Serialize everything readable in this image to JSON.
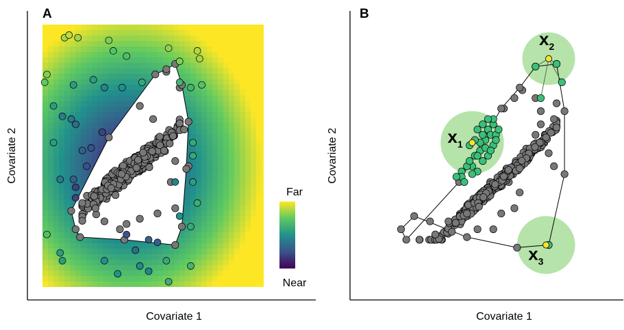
{
  "chart_data": [
    {
      "type": "scatter",
      "panel_label": "A",
      "xlabel": "Covariate 1",
      "ylabel": "Covariate 2",
      "xlim": [
        0,
        100
      ],
      "ylim": [
        0,
        100
      ],
      "grid": false,
      "background": "heatmap of distance to convex hull",
      "colorbar": {
        "top_label": "Far",
        "bottom_label": "Near",
        "colors": [
          "#fde725",
          "#5ec962",
          "#21918c",
          "#3b528b",
          "#440154"
        ]
      },
      "hull": [
        [
          56,
          83
        ],
        [
          60,
          85
        ],
        [
          63,
          77
        ],
        [
          66,
          63
        ],
        [
          65,
          45
        ],
        [
          63,
          23
        ],
        [
          60,
          16
        ],
        [
          37,
          18
        ],
        [
          17,
          19
        ],
        [
          15,
          22
        ],
        [
          13,
          29
        ],
        [
          30,
          57
        ],
        [
          51,
          81
        ]
      ],
      "series": [
        {
          "values": "outside points colored by distance",
          "points": [
            [
              10,
              95,
              0.86
            ],
            [
              12,
              96,
              0.9
            ],
            [
              16,
              95,
              0.85
            ],
            [
              30,
              94,
              0.8
            ],
            [
              32,
              90,
              0.72
            ],
            [
              38,
              88,
              0.7
            ],
            [
              57,
              91,
              0.82
            ],
            [
              62,
              86,
              0.8
            ],
            [
              70,
              90,
              0.88
            ],
            [
              71,
              87,
              0.86
            ],
            [
              2,
              81,
              0.8
            ],
            [
              1,
              78,
              0.75
            ],
            [
              14,
              77,
              0.55
            ],
            [
              23,
              79,
              0.55
            ],
            [
              28,
              76,
              0.45
            ],
            [
              36,
              76,
              0.5
            ],
            [
              45,
              78,
              0.6
            ],
            [
              62,
              78,
              0.65
            ],
            [
              67,
              76,
              0.65
            ],
            [
              72,
              77,
              0.72
            ],
            [
              5,
              69,
              0.55
            ],
            [
              9,
              65,
              0.42
            ],
            [
              13,
              64,
              0.4
            ],
            [
              15,
              62,
              0.35
            ],
            [
              27,
              59,
              0.2
            ],
            [
              22,
              53,
              0.25
            ],
            [
              18,
              52,
              0.3
            ],
            [
              5,
              55,
              0.55
            ],
            [
              68,
              50,
              0.6
            ],
            [
              68,
              55,
              0.6
            ],
            [
              68,
              40,
              0.55
            ],
            [
              70,
              32,
              0.62
            ],
            [
              8,
              41,
              0.4
            ],
            [
              14,
              41,
              0.3
            ],
            [
              20,
              46,
              0.25
            ],
            [
              15,
              38,
              0.2
            ],
            [
              15,
              34,
              0.2
            ],
            [
              60,
              40,
              0.45
            ],
            [
              62,
              27,
              0.5
            ],
            [
              67,
              23,
              0.6
            ],
            [
              38,
              20,
              0.25
            ],
            [
              48,
              18,
              0.32
            ],
            [
              52,
              17,
              0.3
            ],
            [
              42,
              14,
              0.35
            ],
            [
              8,
              13,
              0.55
            ],
            [
              9,
              10,
              0.55
            ],
            [
              28,
              10,
              0.5
            ],
            [
              44,
              8,
              0.48
            ],
            [
              48,
              6,
              0.45
            ],
            [
              56,
              10,
              0.6
            ],
            [
              67,
              8,
              0.65
            ],
            [
              34,
              5,
              0.5
            ],
            [
              2,
              20,
              0.7
            ],
            [
              57,
              2,
              0.62
            ]
          ]
        },
        {
          "values": "inside points (grey)",
          "count": 480,
          "center": [
            40,
            45
          ],
          "spread": [
            9,
            6
          ],
          "edge_points": [
            [
              56,
              82
            ],
            [
              62,
              76
            ],
            [
              64,
              60
            ],
            [
              66,
              46
            ],
            [
              58,
              40
            ],
            [
              60,
              30
            ],
            [
              52,
              28
            ],
            [
              44,
              26
            ],
            [
              24,
              30
            ],
            [
              28,
              25
            ],
            [
              33,
              35
            ],
            [
              50,
              64
            ],
            [
              44,
              69
            ],
            [
              55,
              52
            ],
            [
              60,
              48
            ],
            [
              35,
              22
            ],
            [
              38,
              24
            ]
          ]
        }
      ]
    },
    {
      "type": "scatter",
      "panel_label": "B",
      "xlabel": "Covariate 1",
      "ylabel": "Covariate 2",
      "xlim": [
        0,
        100
      ],
      "ylim": [
        0,
        100
      ],
      "grid": false,
      "hull": [
        [
          68,
          84
        ],
        [
          76,
          85
        ],
        [
          79,
          67
        ],
        [
          79,
          43
        ],
        [
          73,
          16
        ],
        [
          61,
          15
        ],
        [
          42,
          19
        ],
        [
          22,
          27
        ],
        [
          17,
          22
        ],
        [
          19,
          18
        ],
        [
          39,
          40
        ],
        [
          55,
          68
        ],
        [
          62,
          76
        ]
      ],
      "neighborhoods": [
        {
          "label": "x",
          "subscript": "1",
          "center": [
            44,
            55
          ],
          "radius": 12
        },
        {
          "label": "x",
          "subscript": "2",
          "center": [
            73,
            87
          ],
          "radius": 10
        },
        {
          "label": "x",
          "subscript": "3",
          "center": [
            72,
            16
          ],
          "radius": 11
        }
      ],
      "colors": {
        "neighborhood": "#b5e3a9",
        "highlight": "#3bbf7a",
        "point": "#787878",
        "query": "#f5e135"
      },
      "series": [
        {
          "values": "grey points",
          "count": 470,
          "center": [
            52,
            38
          ],
          "spread": [
            10,
            7
          ],
          "edge_points": [
            [
              56,
              68
            ],
            [
              60,
              72
            ],
            [
              63,
              75
            ],
            [
              68,
              72
            ],
            [
              70,
              67
            ],
            [
              75,
              64
            ],
            [
              72,
              57
            ],
            [
              73,
              51
            ],
            [
              75,
              46
            ],
            [
              68,
              58
            ],
            [
              70,
              62
            ],
            [
              62,
              36
            ],
            [
              60,
              30
            ],
            [
              55,
              28
            ],
            [
              42,
              28
            ],
            [
              35,
              25
            ],
            [
              30,
              20
            ],
            [
              28,
              25
            ],
            [
              52,
              22
            ],
            [
              46,
              22
            ]
          ]
        },
        {
          "values": "green highlighted neighbours",
          "points": [
            [
              43,
              54
            ],
            [
              46,
              60
            ],
            [
              48,
              62
            ],
            [
              50,
              60
            ],
            [
              51,
              58
            ],
            [
              52,
              62
            ],
            [
              49,
              56
            ],
            [
              47,
              52
            ],
            [
              45,
              50
            ],
            [
              50,
              50
            ],
            [
              52,
              54
            ],
            [
              53,
              58
            ],
            [
              48,
              48
            ],
            [
              44,
              46
            ],
            [
              42,
              46
            ],
            [
              46,
              44
            ],
            [
              40,
              44
            ],
            [
              40,
              42
            ],
            [
              38,
              42
            ],
            [
              41,
              40
            ],
            [
              44,
              43
            ],
            [
              47,
              55
            ],
            [
              49,
              53
            ],
            [
              51,
              52
            ],
            [
              53,
              56
            ],
            [
              54,
              60
            ],
            [
              52,
              64
            ],
            [
              50,
              64
            ],
            [
              48,
              58
            ],
            [
              46,
              50
            ],
            [
              43,
              48
            ],
            [
              45,
              56
            ]
          ]
        },
        {
          "values": "x2 neighbours",
          "points": [
            [
              68,
              84
            ],
            [
              76,
              85
            ],
            [
              78,
              78
            ],
            [
              70,
              72
            ]
          ]
        },
        {
          "values": "x3 neighbours",
          "points": [
            [
              73,
              16
            ]
          ]
        }
      ]
    }
  ]
}
